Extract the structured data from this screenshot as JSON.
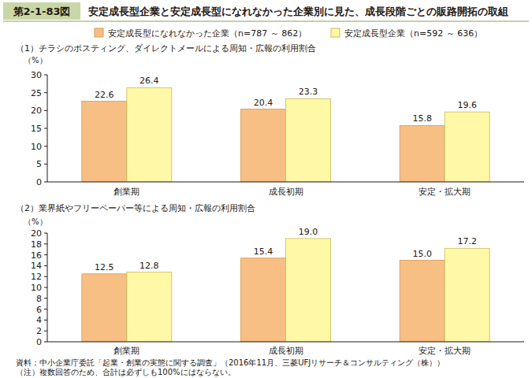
{
  "figure": {
    "number": "第2-1-83図",
    "title": "安定成長型企業と安定成長型になれなかった企業別に見た、成長段階ごとの販路開拓の取組"
  },
  "chart_data": [
    {
      "type": "bar",
      "title": "（1）チラシのポスティング、ダイレクトメールによる周知・広報の利用割合",
      "y_label": "（%）",
      "categories": [
        "創業期",
        "成長初期",
        "安定・拡大期"
      ],
      "series": [
        {
          "name": "安定成長型になれなかった企業（n=787 ～ 862）",
          "color": "#f8bf84",
          "values": [
            22.6,
            20.4,
            15.8
          ]
        },
        {
          "name": "安定成長型企業（n=592 ～ 636）",
          "color": "#fff8a6",
          "values": [
            26.4,
            23.3,
            19.6
          ]
        }
      ],
      "ylim": [
        0,
        30
      ],
      "yticks": [
        0,
        5,
        10,
        15,
        20,
        25,
        30
      ],
      "grid": false,
      "legend": "top",
      "data_labels": true
    },
    {
      "type": "bar",
      "title": "（2）業界紙やフリーペーパー等による周知・広報の利用割合",
      "y_label": "（%）",
      "categories": [
        "創業期",
        "成長初期",
        "安定・拡大期"
      ],
      "series": [
        {
          "color": "#f8bf84",
          "values": [
            12.5,
            15.4,
            15.0
          ],
          "value_labels": [
            "12.5",
            "15.4",
            "15.0"
          ]
        },
        {
          "color": "#fff8a6",
          "values": [
            12.8,
            19.0,
            17.2
          ],
          "value_labels": [
            "12.8",
            "19.0",
            "17.2"
          ]
        }
      ],
      "ylim": [
        0,
        20
      ],
      "yticks": [
        0,
        2,
        4,
        6,
        8,
        10,
        12,
        14,
        16,
        18,
        20
      ],
      "grid": false,
      "data_labels": true
    }
  ],
  "footer": {
    "source": "資料：中小企業庁委託「起業・創業の実態に関する調査」（2016年11月、三菱UFJリサーチ＆コンサルティング（株））",
    "note": "（注）複数回答のため、合計は必ずしも100%にはならない。"
  }
}
